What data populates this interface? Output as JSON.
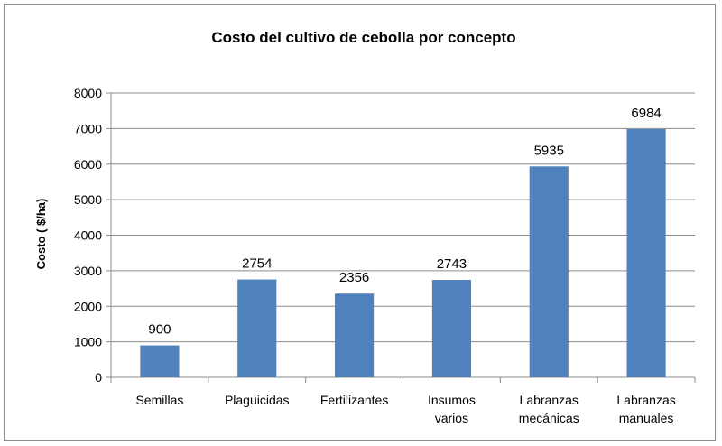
{
  "chart_data": {
    "type": "bar",
    "title": "Costo del cultivo de cebolla por concepto",
    "xlabel": "",
    "ylabel": "Costo ( $/ha)",
    "ylim": [
      0,
      8000
    ],
    "yticks": [
      0,
      1000,
      2000,
      3000,
      4000,
      5000,
      6000,
      7000,
      8000
    ],
    "grid": true,
    "legend": "none",
    "bar_color": "#4f81bd",
    "categories": [
      [
        "Semillas"
      ],
      [
        "Plaguicidas"
      ],
      [
        "Fertilizantes"
      ],
      [
        "Insumos",
        "varios"
      ],
      [
        "Labranzas",
        "mecánicas"
      ],
      [
        "Labranzas",
        "manuales"
      ]
    ],
    "values": [
      900,
      2754,
      2356,
      2743,
      5935,
      6984
    ],
    "data_labels": [
      "900",
      "2754",
      "2356",
      "2743",
      "5935",
      "6984"
    ]
  }
}
